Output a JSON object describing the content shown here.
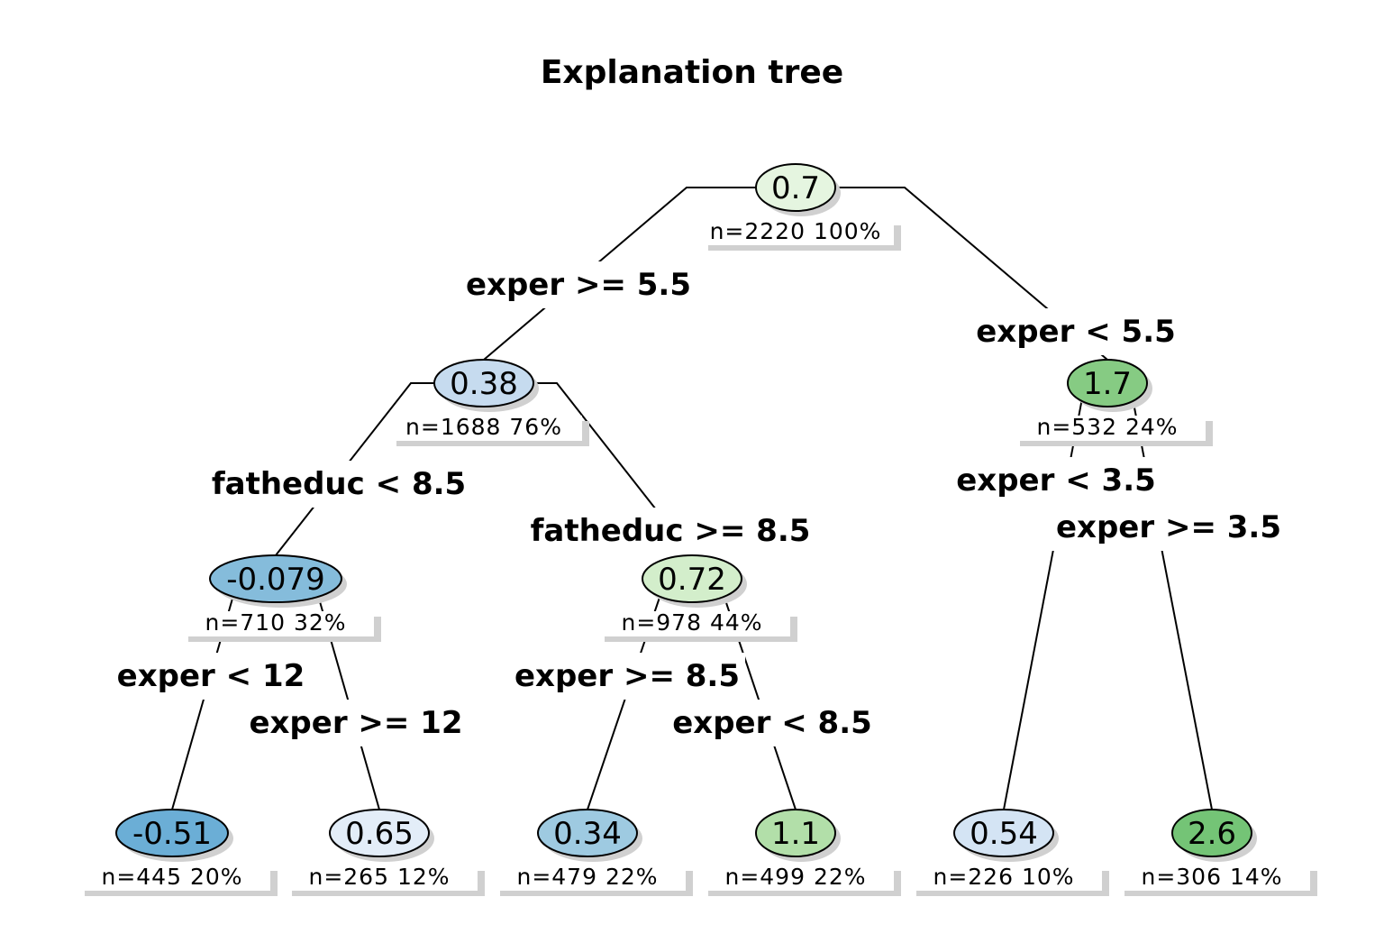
{
  "title": "Explanation tree",
  "palette": {
    "blue_dark": "#6baed6",
    "blue_mid": "#85bcdb",
    "blue_light": "#9ecae1",
    "blue_pale": "#c6dbef",
    "blue_paler": "#d4e4f4",
    "blue_palest": "#e3edf8",
    "green_palest": "#e5f5e0",
    "green_pale": "#d3eecb",
    "green_light": "#b2dfa9",
    "green_mid": "#86cb83",
    "green_dark": "#74c476"
  },
  "nodes": [
    {
      "id": "n0",
      "value": "0.7",
      "info": "n=2220  100%",
      "color": "#e5f5e0",
      "parent": null
    },
    {
      "id": "n1",
      "value": "0.38",
      "info": "n=1688  76%",
      "color": "#c6dbef",
      "parent": "n0"
    },
    {
      "id": "n2",
      "value": "1.7",
      "info": "n=532  24%",
      "color": "#86cb83",
      "parent": "n0"
    },
    {
      "id": "n3",
      "value": "-0.079",
      "info": "n=710  32%",
      "color": "#85bcdb",
      "parent": "n1"
    },
    {
      "id": "n4",
      "value": "0.72",
      "info": "n=978  44%",
      "color": "#d3eecb",
      "parent": "n1"
    },
    {
      "id": "n5",
      "value": "-0.51",
      "info": "n=445  20%",
      "color": "#6baed6",
      "parent": "n3"
    },
    {
      "id": "n6",
      "value": "0.65",
      "info": "n=265  12%",
      "color": "#e3edf8",
      "parent": "n3"
    },
    {
      "id": "n7",
      "value": "0.34",
      "info": "n=479  22%",
      "color": "#9ecae1",
      "parent": "n4"
    },
    {
      "id": "n8",
      "value": "1.1",
      "info": "n=499  22%",
      "color": "#b2dfa9",
      "parent": "n4"
    },
    {
      "id": "n9",
      "value": "0.54",
      "info": "n=226  10%",
      "color": "#d4e4f4",
      "parent": "n2"
    },
    {
      "id": "n10",
      "value": "2.6",
      "info": "n=306  14%",
      "color": "#74c476",
      "parent": "n2"
    }
  ],
  "splits": [
    {
      "from": "n0",
      "to": "n1",
      "label": "exper >= 5.5"
    },
    {
      "from": "n0",
      "to": "n2",
      "label": "exper < 5.5"
    },
    {
      "from": "n1",
      "to": "n3",
      "label": "fatheduc < 8.5"
    },
    {
      "from": "n1",
      "to": "n4",
      "label": "fatheduc >= 8.5"
    },
    {
      "from": "n3",
      "to": "n5",
      "label": "exper < 12"
    },
    {
      "from": "n3",
      "to": "n6",
      "label": "exper >= 12"
    },
    {
      "from": "n4",
      "to": "n7",
      "label": "exper >= 8.5"
    },
    {
      "from": "n4",
      "to": "n8",
      "label": "exper < 8.5"
    },
    {
      "from": "n2",
      "to": "n9",
      "label": "exper < 3.5"
    },
    {
      "from": "n2",
      "to": "n10",
      "label": "exper >= 3.5"
    }
  ]
}
